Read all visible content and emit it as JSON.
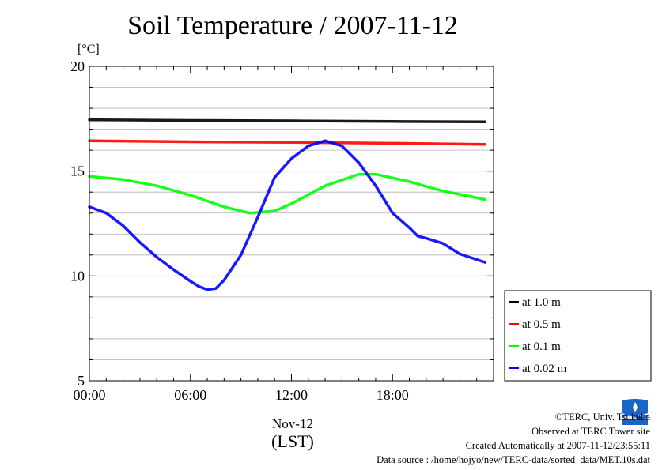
{
  "chart_data": {
    "type": "line",
    "title": "Soil Temperature / 2007-11-12",
    "ylabel": "[°C]",
    "xlabel": "(LST)",
    "x_date_label": "Nov-12",
    "ylim": [
      5,
      20
    ],
    "xlim": [
      0,
      24
    ],
    "y_ticks": [
      "5",
      "10",
      "15",
      "20"
    ],
    "x_ticks": [
      {
        "x": 0,
        "label": "00:00"
      },
      {
        "x": 6,
        "label": "06:00"
      },
      {
        "x": 12,
        "label": "12:00"
      },
      {
        "x": 18,
        "label": "18:00"
      }
    ],
    "grid": true,
    "legend_position": "right",
    "series": [
      {
        "name": "at 1.0 m",
        "color": "#000000",
        "x": [
          0,
          6,
          12,
          18,
          23.5
        ],
        "y": [
          17.45,
          17.42,
          17.4,
          17.37,
          17.35
        ]
      },
      {
        "name": "at 0.5 m",
        "color": "#ff0000",
        "x": [
          0,
          6,
          12,
          18,
          23.5
        ],
        "y": [
          16.45,
          16.4,
          16.37,
          16.33,
          16.28
        ]
      },
      {
        "name": "at 0.1 m",
        "color": "#00ff00",
        "x": [
          0,
          2,
          4,
          6,
          8,
          9.5,
          11,
          12,
          14,
          16,
          17,
          19,
          21,
          23.5
        ],
        "y": [
          14.75,
          14.6,
          14.3,
          13.85,
          13.3,
          13.0,
          13.1,
          13.45,
          14.3,
          14.85,
          14.85,
          14.5,
          14.05,
          13.65
        ]
      },
      {
        "name": "at 0.02 m",
        "color": "#0000ff",
        "x": [
          0,
          1,
          2,
          3,
          4,
          5,
          6,
          6.5,
          7,
          7.5,
          8,
          9,
          10,
          11,
          12,
          13,
          14,
          15,
          16,
          17,
          18,
          19,
          19.5,
          20,
          21,
          22,
          23.5
        ],
        "y": [
          13.3,
          13.0,
          12.4,
          11.6,
          10.9,
          10.3,
          9.75,
          9.5,
          9.35,
          9.4,
          9.8,
          11.0,
          12.8,
          14.7,
          15.6,
          16.2,
          16.45,
          16.2,
          15.4,
          14.3,
          13.0,
          12.3,
          11.9,
          11.8,
          11.55,
          11.05,
          10.65
        ]
      }
    ]
  },
  "footer": {
    "copyright": "©TERC, Univ. Tsukuba",
    "observed": "Observed at TERC Tower site",
    "created": "Created Automatically at 2007-11-12/23:55:11",
    "source": "Data source : /home/hojyo/new/TERC-data/sorted_data/MET.10s.dat"
  },
  "logo": {
    "name": "terc-logo-icon",
    "color": "#1a63c7"
  }
}
